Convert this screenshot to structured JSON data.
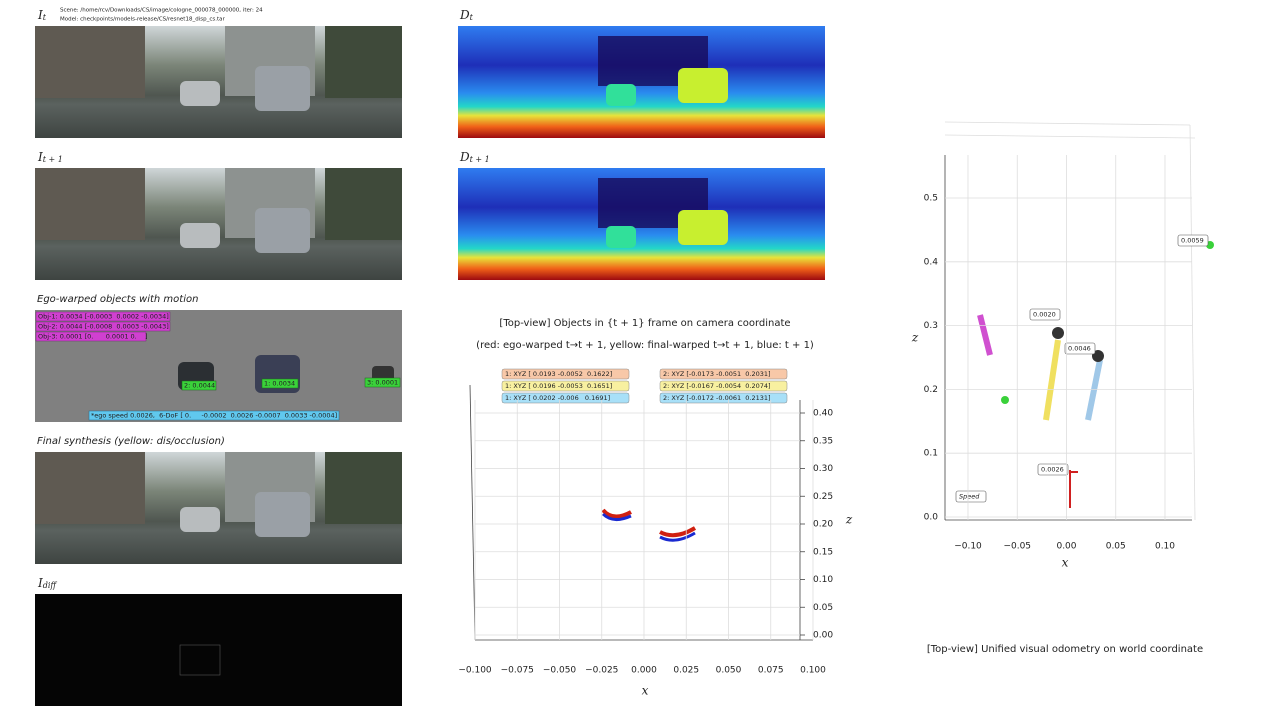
{
  "header": {
    "scene": "Scene: /home/rcv/Downloads/CS/image/cologne_000078_000000, iter: 24",
    "model": "Model: checkpoints/models-release/CS/resnet18_disp_cs.tar"
  },
  "panels": {
    "image_t": {
      "symbol": "I",
      "subscript": "t"
    },
    "image_t1": {
      "symbol": "I",
      "subscript": "t + 1"
    },
    "ego_warped": {
      "caption": "Ego-warped objects with motion",
      "objects": [
        "Obj-1: 0.0034 [-0.0003  0.0002 -0.0034]",
        "Obj-2: 0.0044 [-0.0008  0.0003 -0.0043]",
        "Obj-3: 0.0001 [0.      0.0001 0.    ]"
      ],
      "car_labels": [
        "2: 0.0044",
        "1: 0.0034",
        "3: 0.0001"
      ],
      "ego": "*ego speed 0.0026,  6-DoF [ 0.     -0.0002  0.0026 -0.0007  0.0033 -0.0004]"
    },
    "final_synthesis": {
      "caption": "Final synthesis (yellow: dis/occlusion)"
    },
    "diff": {
      "symbol": "I",
      "subscript": "diff"
    },
    "depth_t": {
      "symbol": "D",
      "subscript": "t"
    },
    "depth_t1": {
      "symbol": "D",
      "subscript": "t + 1"
    }
  },
  "object_plot": {
    "title": "[Top-view] Objects in {t + 1} frame on camera coordinate",
    "subtitle": "(red: ego-warped t→t + 1, yellow: final-warped t→t + 1, blue: t + 1)",
    "legend": [
      [
        "1: XYZ [ 0.0193 -0.0052  0.1622]",
        "1: XYZ [ 0.0196 -0.0053  0.1651]",
        "1: XYZ [ 0.0202 -0.006   0.1691]"
      ],
      [
        "2: XYZ [-0.0173 -0.0051  0.2031]",
        "2: XYZ [-0.0167 -0.0054  0.2074]",
        "2: XYZ [-0.0172 -0.0061  0.2131]"
      ]
    ],
    "x_label": "x",
    "z_label": "z",
    "xticks": [
      "−0.100",
      "−0.075",
      "−0.050",
      "−0.025",
      "0.000",
      "0.025",
      "0.050",
      "0.075",
      "0.100"
    ],
    "zticks": [
      "0.40",
      "0.35",
      "0.30",
      "0.25",
      "0.20",
      "0.15",
      "0.10",
      "0.05",
      "0.00"
    ]
  },
  "odometry_plot": {
    "caption": "[Top-view] Unified visual odometry on world coordinate",
    "labels": [
      "0.0059",
      "0.0020",
      "0.0046",
      "0.0026",
      "Speed"
    ],
    "x_label": "x",
    "z_label": "z",
    "xticks": [
      "−0.10",
      "−0.05",
      "0.00",
      "0.05",
      "0.10"
    ],
    "zticks": [
      "0.5",
      "0.4",
      "0.3",
      "0.2",
      "0.1",
      "0.0"
    ]
  }
}
